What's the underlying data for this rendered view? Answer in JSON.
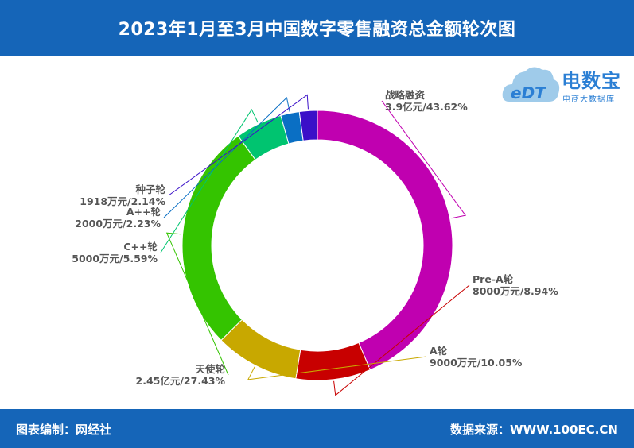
{
  "header": {
    "title": "2023年1月至3月中国数字零售融资总金额轮次图"
  },
  "footer": {
    "left": "图表编制：网经社",
    "right": "数据来源：WWW.100EC.CN"
  },
  "logo": {
    "name": "电数宝",
    "subtitle": "电商大数据库",
    "mark": "eDT",
    "color": "#2b7fd4"
  },
  "chart_data": {
    "type": "pie",
    "title": "2023年1月至3月中国数字零售融资总金额轮次图",
    "donut": true,
    "slices": [
      {
        "name": "战略融资",
        "value_label": "3.9亿元/43.62%",
        "percent": 43.62,
        "color": "#c000b0"
      },
      {
        "name": "Pre-A轮",
        "value_label": "8000万元/8.94%",
        "percent": 8.94,
        "color": "#c80000"
      },
      {
        "name": "A轮",
        "value_label": "9000万元/10.05%",
        "percent": 10.05,
        "color": "#c8a800"
      },
      {
        "name": "天使轮",
        "value_label": "2.45亿元/27.43%",
        "percent": 27.43,
        "color": "#34c400"
      },
      {
        "name": "C++轮",
        "value_label": "5000万元/5.59%",
        "percent": 5.59,
        "color": "#00c470"
      },
      {
        "name": "A++轮",
        "value_label": "2000万元/2.23%",
        "percent": 2.23,
        "color": "#0a6fc4"
      },
      {
        "name": "种子轮",
        "value_label": "1918万元/2.14%",
        "percent": 2.14,
        "color": "#3a10c8"
      }
    ]
  }
}
